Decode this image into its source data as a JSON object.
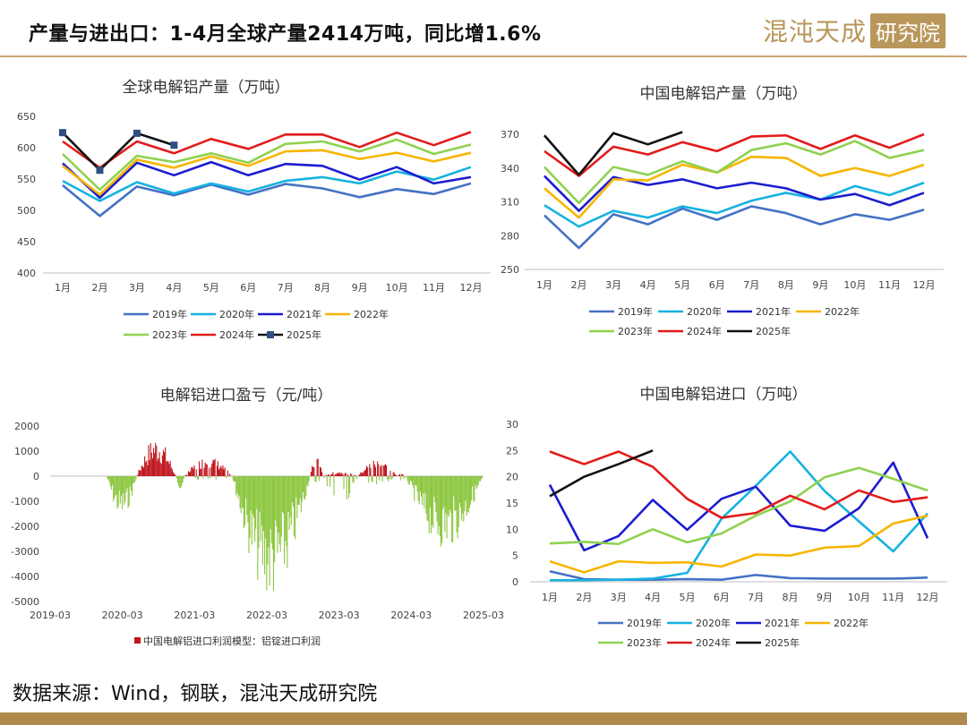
{
  "header": {
    "title": "产量与进出口：1-4月全球产量2414万吨，同比增1.6%",
    "logo_text": "混沌天成",
    "logo_box": "研究院"
  },
  "footer": {
    "source": "数据来源：Wind，钢联，混沌天成研究院"
  },
  "colors": {
    "2019": "#4472c4",
    "2020": "#17b2e0",
    "2021": "#1c1ccf",
    "2022": "#f7b500",
    "2023": "#8fd14f",
    "2024": "#e21b1b",
    "2025": "#111111",
    "profit_pos": "#c0141c",
    "profit_neg": "#8cc63f"
  },
  "chart_data": [
    {
      "type": "line",
      "title": "全球电解铝产量（万吨）",
      "categories": [
        "1月",
        "2月",
        "3月",
        "4月",
        "5月",
        "6月",
        "7月",
        "8月",
        "9月",
        "10月",
        "11月",
        "12月"
      ],
      "ylim": [
        400,
        650
      ],
      "yticks": [
        "650",
        "600",
        "550",
        "500",
        "450",
        "400"
      ],
      "series": [
        {
          "name": "2019年",
          "values": [
            540,
            491,
            538,
            524,
            541,
            525,
            542,
            535,
            521,
            534,
            526,
            543
          ]
        },
        {
          "name": "2020年",
          "values": [
            547,
            515,
            545,
            527,
            543,
            530,
            547,
            553,
            543,
            562,
            549,
            569
          ]
        },
        {
          "name": "2021年",
          "values": [
            575,
            520,
            576,
            556,
            577,
            556,
            574,
            571,
            549,
            569,
            543,
            553
          ]
        },
        {
          "name": "2022年",
          "values": [
            571,
            525,
            581,
            568,
            586,
            571,
            594,
            596,
            582,
            592,
            578,
            592
          ]
        },
        {
          "name": "2023年",
          "values": [
            590,
            533,
            587,
            577,
            591,
            576,
            606,
            610,
            594,
            613,
            590,
            605
          ]
        },
        {
          "name": "2024年",
          "values": [
            610,
            568,
            610,
            591,
            614,
            598,
            621,
            621,
            601,
            624,
            604,
            625
          ]
        },
        {
          "name": "2025年",
          "values": [
            624,
            564,
            623,
            604,
            null,
            null,
            null,
            null,
            null,
            null,
            null,
            null
          ],
          "markers": true
        }
      ]
    },
    {
      "type": "line",
      "title": "中国电解铝产量（万吨）",
      "categories": [
        "1月",
        "2月",
        "3月",
        "4月",
        "5月",
        "6月",
        "7月",
        "8月",
        "9月",
        "10月",
        "11月",
        "12月"
      ],
      "ylim": [
        250,
        370
      ],
      "yticks": [
        "370",
        "340",
        "310",
        "280",
        "250"
      ],
      "series": [
        {
          "name": "2019年",
          "values": [
            298,
            269,
            299,
            290,
            304,
            294,
            306,
            300,
            290,
            299,
            294,
            303
          ]
        },
        {
          "name": "2020年",
          "values": [
            307,
            288,
            302,
            296,
            306,
            300,
            311,
            318,
            312,
            324,
            316,
            327
          ]
        },
        {
          "name": "2021年",
          "values": [
            333,
            302,
            332,
            325,
            330,
            322,
            327,
            322,
            312,
            317,
            307,
            318
          ]
        },
        {
          "name": "2022年",
          "values": [
            322,
            296,
            330,
            329,
            343,
            336,
            350,
            349,
            333,
            340,
            333,
            343
          ]
        },
        {
          "name": "2023年",
          "values": [
            341,
            309,
            341,
            334,
            346,
            336,
            356,
            362,
            352,
            364,
            349,
            356
          ]
        },
        {
          "name": "2024年",
          "values": [
            355,
            333,
            359,
            352,
            363,
            355,
            368,
            369,
            357,
            369,
            358,
            370
          ]
        },
        {
          "name": "2025年",
          "values": [
            369,
            334,
            371,
            361,
            372,
            null,
            null,
            null,
            null,
            null,
            null,
            null
          ]
        }
      ]
    },
    {
      "type": "bar",
      "title": "电解铝进口盈亏（元/吨）",
      "ylim": [
        -5000,
        2000
      ],
      "yticks": [
        "2000",
        "1000",
        "0",
        "-1000",
        "-2000",
        "-3000",
        "-4000",
        "-5000"
      ],
      "xticks": [
        "2019-03",
        "2020-03",
        "2021-03",
        "2022-03",
        "2023-03",
        "2024-03",
        "2025-03"
      ],
      "legend": "中国电解铝进口利润模型：铝锭进口利润",
      "segments": [
        {
          "from": 0.13,
          "to": 0.2,
          "min": -1700,
          "max": 0
        },
        {
          "from": 0.2,
          "to": 0.29,
          "min": 0,
          "max": 1600
        },
        {
          "from": 0.29,
          "to": 0.31,
          "min": -500,
          "max": 0
        },
        {
          "from": 0.31,
          "to": 0.42,
          "min": -200,
          "max": 800
        },
        {
          "from": 0.42,
          "to": 0.6,
          "min": -4950,
          "max": 0
        },
        {
          "from": 0.6,
          "to": 0.63,
          "min": -300,
          "max": 900
        },
        {
          "from": 0.63,
          "to": 0.71,
          "min": -1200,
          "max": 200
        },
        {
          "from": 0.71,
          "to": 0.8,
          "min": -400,
          "max": 700
        },
        {
          "from": 0.8,
          "to": 0.82,
          "min": -300,
          "max": 100
        },
        {
          "from": 0.82,
          "to": 1.0,
          "min": -2900,
          "max": 0
        }
      ]
    },
    {
      "type": "line",
      "title": "中国电解铝进口（万吨）",
      "categories": [
        "1月",
        "2月",
        "3月",
        "4月",
        "5月",
        "6月",
        "7月",
        "8月",
        "9月",
        "10月",
        "11月",
        "12月"
      ],
      "ylim": [
        0,
        30
      ],
      "yticks": [
        "30",
        "25",
        "20",
        "15",
        "10",
        "5",
        "0"
      ],
      "series": [
        {
          "name": "2019年",
          "values": [
            2.0,
            0.5,
            0.4,
            0.4,
            0.5,
            0.4,
            1.3,
            0.7,
            0.6,
            0.6,
            0.6,
            0.8
          ]
        },
        {
          "name": "2020年",
          "values": [
            0.3,
            0.3,
            0.4,
            0.6,
            1.7,
            12.0,
            18.3,
            24.8,
            17.3,
            11.5,
            5.8,
            13.0
          ]
        },
        {
          "name": "2021年",
          "values": [
            18.5,
            6.0,
            8.7,
            15.6,
            9.9,
            15.8,
            18.1,
            10.7,
            9.7,
            14.0,
            22.7,
            8.3
          ]
        },
        {
          "name": "2022年",
          "values": [
            3.9,
            1.8,
            3.9,
            3.6,
            3.7,
            2.9,
            5.2,
            5.0,
            6.5,
            6.8,
            11.1,
            12.6
          ]
        },
        {
          "name": "2023年",
          "values": [
            7.3,
            7.6,
            7.2,
            10.0,
            7.5,
            9.2,
            12.6,
            15.3,
            19.9,
            21.7,
            19.6,
            17.4
          ]
        },
        {
          "name": "2024年",
          "values": [
            24.8,
            22.4,
            24.8,
            21.9,
            15.8,
            12.2,
            13.1,
            16.4,
            13.8,
            17.4,
            15.2,
            16.1
          ]
        },
        {
          "name": "2025年",
          "values": [
            16.3,
            20.0,
            22.4,
            25.0,
            null,
            null,
            null,
            null,
            null,
            null,
            null,
            null
          ]
        }
      ]
    }
  ]
}
